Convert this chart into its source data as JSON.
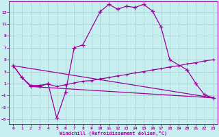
{
  "bg_color": "#c8eef0",
  "grid_color": "#a8d4d8",
  "line_color": "#990099",
  "xlabel": "Windchill (Refroidissement éolien,°C)",
  "xlim": [
    -0.5,
    23.5
  ],
  "ylim": [
    -5.8,
    14.8
  ],
  "xticks": [
    0,
    1,
    2,
    3,
    4,
    5,
    6,
    7,
    8,
    9,
    10,
    11,
    12,
    13,
    14,
    15,
    16,
    17,
    18,
    19,
    20,
    21,
    22,
    23
  ],
  "yticks": [
    -5,
    -3,
    -1,
    1,
    3,
    5,
    7,
    9,
    11,
    13
  ],
  "curve1_x": [
    0,
    1,
    2,
    3,
    4,
    5,
    6,
    7,
    8,
    10,
    11,
    12,
    13,
    14,
    15,
    16,
    17,
    18,
    20,
    21,
    22,
    23
  ],
  "curve1_y": [
    4.0,
    2.0,
    0.5,
    0.5,
    1.0,
    -4.8,
    -0.5,
    7.0,
    7.5,
    13.1,
    14.3,
    13.5,
    14.0,
    13.8,
    14.3,
    13.2,
    10.5,
    5.0,
    3.3,
    1.0,
    -0.9,
    -1.4
  ],
  "curve2_x": [
    0,
    1,
    2,
    3,
    4,
    5,
    6,
    7,
    8,
    9,
    10,
    11,
    12,
    13,
    14,
    15,
    16,
    17,
    18,
    19,
    20,
    21,
    22,
    23
  ],
  "curve2_y": [
    4.0,
    2.0,
    0.7,
    0.7,
    0.9,
    0.5,
    0.8,
    1.1,
    1.4,
    1.5,
    1.8,
    2.0,
    2.3,
    2.5,
    2.8,
    3.0,
    3.3,
    3.5,
    3.8,
    4.0,
    4.3,
    4.5,
    4.8,
    5.0
  ],
  "line1_x": [
    0,
    23
  ],
  "line1_y": [
    4.0,
    -1.4
  ],
  "line2_x": [
    2,
    23
  ],
  "line2_y": [
    0.5,
    -1.4
  ]
}
